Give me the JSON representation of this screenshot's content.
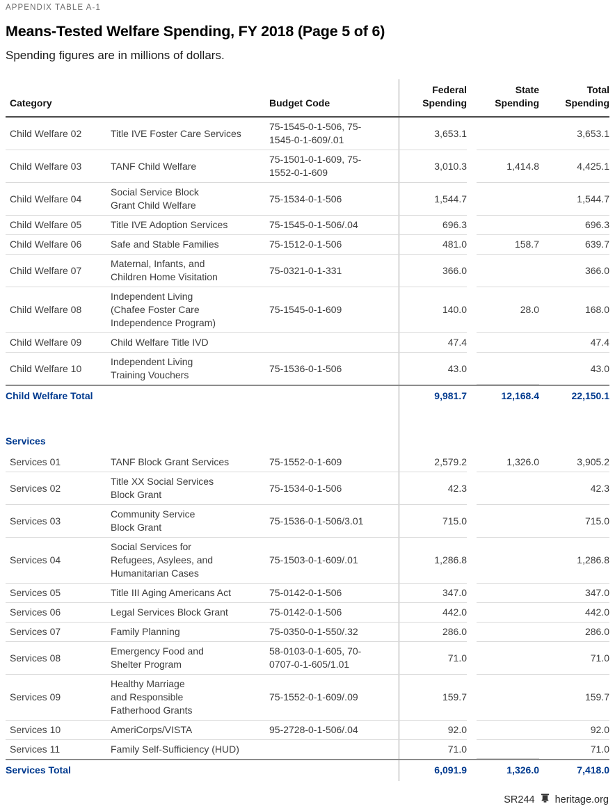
{
  "page": {
    "kicker": "APPENDIX TABLE A-1",
    "title": "Means-Tested Welfare Spending, FY 2018 (Page 5 of 6)",
    "subtitle": "Spending figures are in millions of dollars.",
    "footer": {
      "report_id": "SR244",
      "site": "heritage.org"
    }
  },
  "colors": {
    "accent_navy": "#003A8F",
    "body_text": "#3D3D3D",
    "kicker_gray": "#6B6B6B",
    "rule_light": "#D9D9D9",
    "rule_dark": "#4A4A4A",
    "rule_medium": "#8C8C8C"
  },
  "table": {
    "headers": {
      "category": "Category",
      "budget_code": "Budget Code",
      "federal": "Federal\nSpending",
      "state": "State\nSpending",
      "total": "Total\nSpending"
    },
    "sections": [
      {
        "heading": null,
        "rows": [
          {
            "category": "Child Welfare 02",
            "program": "Title IVE Foster Care Services",
            "budget_code": "75-1545-0-1-506, 75-\n1545-0-1-609/.01",
            "federal": "3,653.1",
            "state": "",
            "total": "3,653.1"
          },
          {
            "category": "Child Welfare 03",
            "program": "TANF Child Welfare",
            "budget_code": "75-1501-0-1-609, 75-\n1552-0-1-609",
            "federal": "3,010.3",
            "state": "1,414.8",
            "total": "4,425.1"
          },
          {
            "category": "Child Welfare 04",
            "program": "Social Service Block\nGrant Child Welfare",
            "budget_code": "75-1534-0-1-506",
            "federal": "1,544.7",
            "state": "",
            "total": "1,544.7"
          },
          {
            "category": "Child Welfare 05",
            "program": "Title IVE Adoption Services",
            "budget_code": "75-1545-0-1-506/.04",
            "federal": "696.3",
            "state": "",
            "total": "696.3"
          },
          {
            "category": "Child Welfare 06",
            "program": "Safe and Stable Families",
            "budget_code": "75-1512-0-1-506",
            "federal": "481.0",
            "state": "158.7",
            "total": "639.7"
          },
          {
            "category": "Child Welfare 07",
            "program": "Maternal, Infants, and\nChildren Home Visitation",
            "budget_code": "75-0321-0-1-331",
            "federal": "366.0",
            "state": "",
            "total": "366.0"
          },
          {
            "category": "Child Welfare 08",
            "program": "Independent Living\n(Chafee Foster Care\nIndependence Program)",
            "budget_code": "75-1545-0-1-609",
            "federal": "140.0",
            "state": "28.0",
            "total": "168.0"
          },
          {
            "category": "Child Welfare 09",
            "program": "Child Welfare Title IVD",
            "budget_code": "",
            "federal": "47.4",
            "state": "",
            "total": "47.4"
          },
          {
            "category": "Child Welfare 10",
            "program": "Independent Living\nTraining Vouchers",
            "budget_code": "75-1536-0-1-506",
            "federal": "43.0",
            "state": "",
            "total": "43.0"
          }
        ],
        "total": {
          "label": "Child Welfare Total",
          "federal": "9,981.7",
          "state": "12,168.4",
          "total": "22,150.1"
        }
      },
      {
        "heading": "Services",
        "rows": [
          {
            "category": "Services 01",
            "program": "TANF Block Grant Services",
            "budget_code": "75-1552-0-1-609",
            "federal": "2,579.2",
            "state": "1,326.0",
            "total": "3,905.2"
          },
          {
            "category": "Services 02",
            "program": "Title XX Social Services\nBlock Grant",
            "budget_code": "75-1534-0-1-506",
            "federal": "42.3",
            "state": "",
            "total": "42.3"
          },
          {
            "category": "Services 03",
            "program": "Community Service\nBlock Grant",
            "budget_code": "75-1536-0-1-506/3.01",
            "federal": "715.0",
            "state": "",
            "total": "715.0"
          },
          {
            "category": "Services 04",
            "program": "Social Services for\nRefugees, Asylees, and\nHumanitarian Cases",
            "budget_code": "75-1503-0-1-609/.01",
            "federal": "1,286.8",
            "state": "",
            "total": "1,286.8"
          },
          {
            "category": "Services 05",
            "program": "Title III Aging Americans Act",
            "budget_code": "75-0142-0-1-506",
            "federal": "347.0",
            "state": "",
            "total": "347.0"
          },
          {
            "category": "Services 06",
            "program": "Legal Services Block Grant",
            "budget_code": "75-0142-0-1-506",
            "federal": "442.0",
            "state": "",
            "total": "442.0"
          },
          {
            "category": "Services 07",
            "program": "Family Planning",
            "budget_code": "75-0350-0-1-550/.32",
            "federal": "286.0",
            "state": "",
            "total": "286.0"
          },
          {
            "category": "Services 08",
            "program": "Emergency Food and\nShelter Program",
            "budget_code": "58-0103-0-1-605, 70-\n0707-0-1-605/1.01",
            "federal": "71.0",
            "state": "",
            "total": "71.0"
          },
          {
            "category": "Services 09",
            "program": "Healthy Marriage\nand Responsible\nFatherhood Grants",
            "budget_code": "75-1552-0-1-609/.09",
            "federal": "159.7",
            "state": "",
            "total": "159.7"
          },
          {
            "category": "Services 10",
            "program": "AmeriCorps/VISTA",
            "budget_code": "95-2728-0-1-506/.04",
            "federal": "92.0",
            "state": "",
            "total": "92.0"
          },
          {
            "category": "Services 11",
            "program": "Family Self-Sufficiency (HUD)",
            "budget_code": "",
            "federal": "71.0",
            "state": "",
            "total": "71.0"
          }
        ],
        "total": {
          "label": "Services Total",
          "federal": "6,091.9",
          "state": "1,326.0",
          "total": "7,418.0"
        }
      }
    ]
  }
}
